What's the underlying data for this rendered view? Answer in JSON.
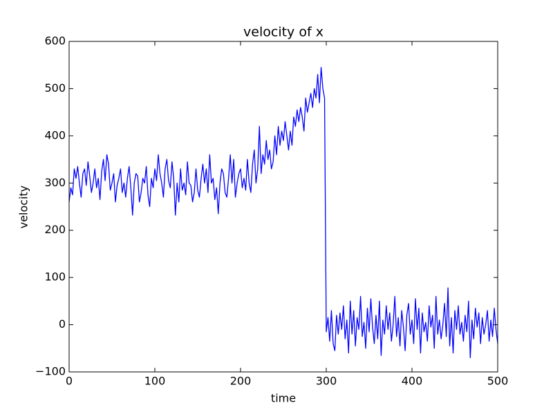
{
  "chart_data": {
    "type": "line",
    "title": "velocity of x",
    "xlabel": "time",
    "ylabel": "velocity",
    "x": [
      0,
      2,
      4,
      6,
      8,
      10,
      12,
      14,
      16,
      18,
      20,
      22,
      24,
      26,
      28,
      30,
      32,
      34,
      36,
      38,
      40,
      42,
      44,
      46,
      48,
      50,
      52,
      54,
      56,
      58,
      60,
      62,
      64,
      66,
      68,
      70,
      72,
      74,
      76,
      78,
      80,
      82,
      84,
      86,
      88,
      90,
      92,
      94,
      96,
      98,
      100,
      102,
      104,
      106,
      108,
      110,
      112,
      114,
      116,
      118,
      120,
      122,
      124,
      126,
      128,
      130,
      132,
      134,
      136,
      138,
      140,
      142,
      144,
      146,
      148,
      150,
      152,
      154,
      156,
      158,
      160,
      162,
      164,
      166,
      168,
      170,
      172,
      174,
      176,
      178,
      180,
      182,
      184,
      186,
      188,
      190,
      192,
      194,
      196,
      198,
      200,
      202,
      204,
      206,
      208,
      210,
      212,
      214,
      216,
      218,
      220,
      222,
      224,
      226,
      228,
      230,
      232,
      234,
      236,
      238,
      240,
      242,
      244,
      246,
      248,
      250,
      252,
      254,
      256,
      258,
      260,
      262,
      264,
      266,
      268,
      270,
      272,
      274,
      276,
      278,
      280,
      282,
      284,
      286,
      288,
      290,
      292,
      294,
      296,
      298,
      300,
      302,
      304,
      306,
      308,
      310,
      312,
      314,
      316,
      318,
      320,
      322,
      324,
      326,
      328,
      330,
      332,
      334,
      336,
      338,
      340,
      342,
      344,
      346,
      348,
      350,
      352,
      354,
      356,
      358,
      360,
      362,
      364,
      366,
      368,
      370,
      372,
      374,
      376,
      378,
      380,
      382,
      384,
      386,
      388,
      390,
      392,
      394,
      396,
      398,
      400,
      402,
      404,
      406,
      408,
      410,
      412,
      414,
      416,
      418,
      420,
      422,
      424,
      426,
      428,
      430,
      432,
      434,
      436,
      438,
      440,
      442,
      444,
      446,
      448,
      450,
      452,
      454,
      456,
      458,
      460,
      462,
      464,
      466,
      468,
      470,
      472,
      474,
      476,
      478,
      480,
      482,
      484,
      486,
      488,
      490,
      492,
      494,
      496,
      498,
      500
    ],
    "series": [
      {
        "name": "velocity",
        "color": "#0000ff",
        "values": [
          260,
          290,
          275,
          330,
          310,
          335,
          300,
          270,
          320,
          330,
          295,
          345,
          315,
          280,
          300,
          330,
          290,
          310,
          265,
          325,
          350,
          305,
          360,
          340,
          285,
          300,
          320,
          260,
          295,
          310,
          330,
          280,
          300,
          270,
          310,
          335,
          290,
          232,
          300,
          320,
          315,
          260,
          280,
          310,
          300,
          335,
          275,
          250,
          310,
          290,
          330,
          305,
          360,
          320,
          300,
          270,
          330,
          350,
          305,
          290,
          345,
          310,
          232,
          300,
          260,
          330,
          285,
          300,
          275,
          345,
          300,
          295,
          260,
          280,
          330,
          285,
          270,
          310,
          340,
          300,
          330,
          280,
          360,
          300,
          310,
          265,
          290,
          235,
          300,
          330,
          320,
          280,
          270,
          310,
          360,
          300,
          350,
          270,
          300,
          320,
          330,
          290,
          310,
          285,
          350,
          300,
          280,
          340,
          370,
          300,
          330,
          420,
          320,
          360,
          340,
          390,
          350,
          370,
          330,
          345,
          400,
          360,
          420,
          380,
          410,
          390,
          430,
          400,
          370,
          410,
          380,
          440,
          420,
          455,
          430,
          460,
          440,
          410,
          480,
          450,
          470,
          490,
          460,
          500,
          480,
          530,
          470,
          545,
          500,
          480,
          -15,
          15,
          -35,
          30,
          -40,
          -55,
          20,
          -20,
          25,
          -10,
          40,
          -30,
          10,
          -60,
          50,
          -20,
          30,
          -45,
          15,
          -10,
          60,
          -25,
          5,
          -50,
          35,
          -15,
          55,
          -5,
          -40,
          20,
          -30,
          50,
          -65,
          10,
          -20,
          40,
          -10,
          25,
          -35,
          0,
          60,
          -25,
          15,
          -45,
          30,
          -5,
          -55,
          20,
          45,
          -20,
          10,
          -40,
          55,
          -10,
          35,
          -60,
          25,
          -15,
          5,
          -35,
          40,
          -5,
          20,
          -50,
          60,
          -20,
          10,
          -30,
          0,
          45,
          -25,
          78,
          -45,
          15,
          -60,
          30,
          -10,
          40,
          -20,
          5,
          -35,
          20,
          -15,
          50,
          -70,
          10,
          -30,
          35,
          -5,
          25,
          -40,
          15,
          -20,
          0,
          30,
          -35,
          10,
          -25,
          35,
          -10,
          -40
        ]
      }
    ],
    "xlim": [
      0,
      500
    ],
    "xticks": [
      0,
      100,
      200,
      300,
      400,
      500
    ],
    "ylim": [
      -100,
      600
    ],
    "yticks": [
      {
        "value": -100,
        "label": "−100"
      },
      0,
      100,
      200,
      300,
      400,
      500,
      600
    ],
    "grid": false
  }
}
